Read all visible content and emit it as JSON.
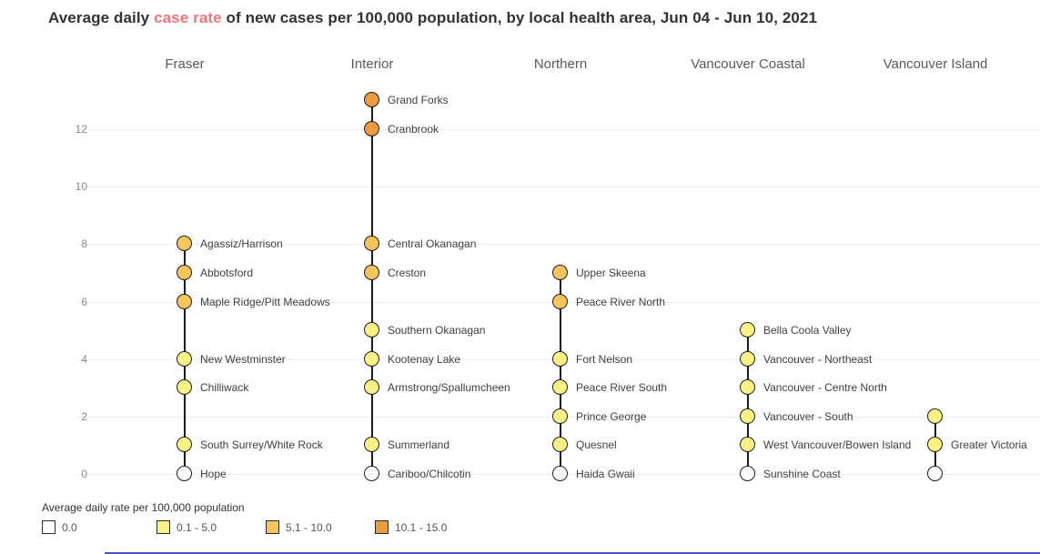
{
  "title": {
    "prefix": "Average daily ",
    "highlight": "case rate",
    "suffix": " of new cases per 100,000 population, by local health area, Jun 04 - Jun 10, 2021"
  },
  "colors": {
    "title_highlight": "#f4767b",
    "dot_border": "#1f1f1f",
    "gridline": "#ebebeb",
    "bottom_divider": "#4752c4"
  },
  "legend": {
    "title": "Average daily rate per 100,000 population"
  },
  "chart_data": {
    "type": "scatter",
    "subtype": "categorical-dot-strip",
    "title": "Average daily case rate of new cases per 100,000 population, by local health area, Jun 04 - Jun 10, 2021",
    "xlabel": "",
    "ylabel": "",
    "ylim": [
      0,
      13.5
    ],
    "yticks": [
      0,
      2,
      4,
      6,
      8,
      10,
      12
    ],
    "grid": "horizontal",
    "legend_position": "bottom",
    "bins": [
      {
        "range": "0.0",
        "color": "#ffffff"
      },
      {
        "range": "0.1 - 5.0",
        "color": "#faf284"
      },
      {
        "range": "5.1 - 10.0",
        "color": "#f6c45c"
      },
      {
        "range": "10.1 - 15.0",
        "color": "#ec9c3d"
      }
    ],
    "columns": [
      {
        "name": "Fraser",
        "points": [
          {
            "label": "Agassiz/Harrison",
            "value": 8,
            "bin": "5.1 - 10.0"
          },
          {
            "label": "Abbotsford",
            "value": 7,
            "bin": "5.1 - 10.0"
          },
          {
            "label": "Maple Ridge/Pitt Meadows",
            "value": 6,
            "bin": "5.1 - 10.0"
          },
          {
            "label": "New Westminster",
            "value": 4,
            "bin": "0.1 - 5.0"
          },
          {
            "label": "Chilliwack",
            "value": 3,
            "bin": "0.1 - 5.0"
          },
          {
            "label": "South Surrey/White Rock",
            "value": 1,
            "bin": "0.1 - 5.0"
          },
          {
            "label": "Hope",
            "value": 0,
            "bin": "0.0"
          }
        ]
      },
      {
        "name": "Interior",
        "points": [
          {
            "label": "Grand Forks",
            "value": 13,
            "bin": "10.1 - 15.0"
          },
          {
            "label": "Cranbrook",
            "value": 12,
            "bin": "10.1 - 15.0"
          },
          {
            "label": "Central Okanagan",
            "value": 8,
            "bin": "5.1 - 10.0"
          },
          {
            "label": "Creston",
            "value": 7,
            "bin": "5.1 - 10.0"
          },
          {
            "label": "Southern Okanagan",
            "value": 5,
            "bin": "0.1 - 5.0"
          },
          {
            "label": "Kootenay Lake",
            "value": 4,
            "bin": "0.1 - 5.0"
          },
          {
            "label": "Armstrong/Spallumcheen",
            "value": 3,
            "bin": "0.1 - 5.0"
          },
          {
            "label": "Summerland",
            "value": 1,
            "bin": "0.1 - 5.0"
          },
          {
            "label": "Cariboo/Chilcotin",
            "value": 0,
            "bin": "0.0"
          }
        ]
      },
      {
        "name": "Northern",
        "points": [
          {
            "label": "Upper Skeena",
            "value": 7,
            "bin": "5.1 - 10.0"
          },
          {
            "label": "Peace River North",
            "value": 6,
            "bin": "5.1 - 10.0"
          },
          {
            "label": "Fort Nelson",
            "value": 4,
            "bin": "0.1 - 5.0"
          },
          {
            "label": "Peace River South",
            "value": 3,
            "bin": "0.1 - 5.0"
          },
          {
            "label": "Prince George",
            "value": 2,
            "bin": "0.1 - 5.0"
          },
          {
            "label": "Quesnel",
            "value": 1,
            "bin": "0.1 - 5.0"
          },
          {
            "label": "Haida Gwaii",
            "value": 0,
            "bin": "0.0"
          }
        ]
      },
      {
        "name": "Vancouver Coastal",
        "points": [
          {
            "label": "Bella Coola Valley",
            "value": 5,
            "bin": "0.1 - 5.0"
          },
          {
            "label": "Vancouver - Northeast",
            "value": 4,
            "bin": "0.1 - 5.0"
          },
          {
            "label": "Vancouver - Centre North",
            "value": 3,
            "bin": "0.1 - 5.0"
          },
          {
            "label": "Vancouver - South",
            "value": 2,
            "bin": "0.1 - 5.0"
          },
          {
            "label": "West Vancouver/Bowen Island",
            "value": 1,
            "bin": "0.1 - 5.0"
          },
          {
            "label": "Sunshine Coast",
            "value": 0,
            "bin": "0.0"
          }
        ]
      },
      {
        "name": "Vancouver Island",
        "points": [
          {
            "label": "",
            "value": 2,
            "bin": "0.1 - 5.0"
          },
          {
            "label": "Greater Victoria",
            "value": 1,
            "bin": "0.1 - 5.0"
          },
          {
            "label": "",
            "value": 0,
            "bin": "0.0"
          }
        ]
      }
    ]
  }
}
